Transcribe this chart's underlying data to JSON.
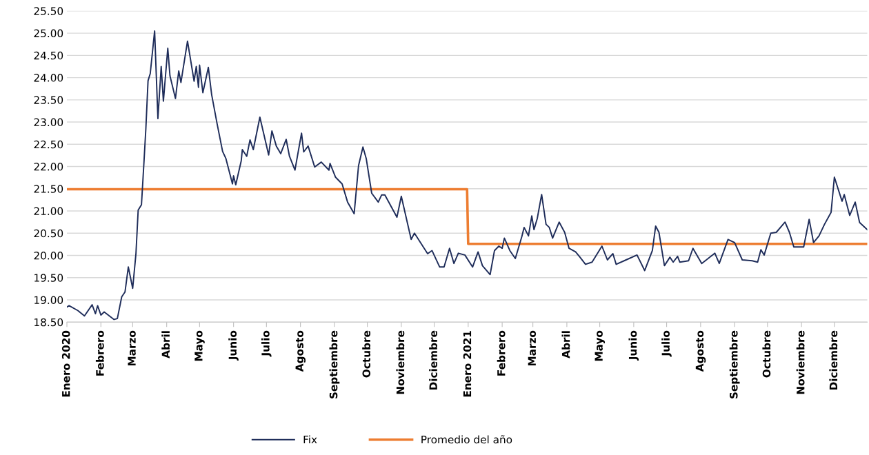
{
  "chart_data": {
    "type": "line",
    "legend": "bottom",
    "grid": "y",
    "ylim": [
      18.5,
      25.5
    ],
    "yticks": [
      {
        "value": 18.5,
        "label": "18.50"
      },
      {
        "value": 19,
        "label": "19.00"
      },
      {
        "value": 19.5,
        "label": "19.50"
      },
      {
        "value": 20,
        "label": "20.00"
      },
      {
        "value": 20.5,
        "label": "20.50"
      },
      {
        "value": 21,
        "label": "21.00"
      },
      {
        "value": 21.5,
        "label": "21.50"
      },
      {
        "value": 22,
        "label": "22.00"
      },
      {
        "value": 22.5,
        "label": "22.50"
      },
      {
        "value": 23,
        "label": "23.00"
      },
      {
        "value": 23.5,
        "label": "23.50"
      },
      {
        "value": 24,
        "label": "24.00"
      },
      {
        "value": 24.5,
        "label": "24.50"
      },
      {
        "value": 25,
        "label": "25.00"
      },
      {
        "value": 25.5,
        "label": "25.50"
      }
    ],
    "xlim": [
      "2020-01-01",
      "2021-12-31"
    ],
    "xticks": [
      {
        "value": "2020-01-01",
        "label": "Enero 2020"
      },
      {
        "value": "2020-02-01",
        "label": "Febrero"
      },
      {
        "value": "2020-03-01",
        "label": "Marzo"
      },
      {
        "value": "2020-04-01",
        "label": "Abril"
      },
      {
        "value": "2020-05-01",
        "label": "Mayo"
      },
      {
        "value": "2020-06-01",
        "label": "Junio"
      },
      {
        "value": "2020-07-01",
        "label": "Julio"
      },
      {
        "value": "2020-08-01",
        "label": "Agosto"
      },
      {
        "value": "2020-09-01",
        "label": "Septiembre"
      },
      {
        "value": "2020-10-01",
        "label": "Octubre"
      },
      {
        "value": "2020-11-01",
        "label": "Noviembre"
      },
      {
        "value": "2020-12-01",
        "label": "Diciembre"
      },
      {
        "value": "2021-01-01",
        "label": "Enero 2021"
      },
      {
        "value": "2021-02-01",
        "label": "Febrero"
      },
      {
        "value": "2021-03-01",
        "label": "Marzo"
      },
      {
        "value": "2021-04-01",
        "label": "Abril"
      },
      {
        "value": "2021-05-01",
        "label": "Mayo"
      },
      {
        "value": "2021-06-01",
        "label": "Junio"
      },
      {
        "value": "2021-07-01",
        "label": "Julio"
      },
      {
        "value": "2021-08-01",
        "label": "Agosto"
      },
      {
        "value": "2021-09-01",
        "label": "Septiembre"
      },
      {
        "value": "2021-10-01",
        "label": "Octubre"
      },
      {
        "value": "2021-11-01",
        "label": "Noviembre"
      },
      {
        "value": "2021-12-01",
        "label": "Diciembre"
      }
    ],
    "series": [
      {
        "name": "Fix",
        "color": "#1f2d5a",
        "x": [
          "2020-01-01",
          "2020-01-03",
          "2020-01-11",
          "2020-01-17",
          "2020-01-24",
          "2020-01-27",
          "2020-01-29",
          "2020-02-01",
          "2020-02-04",
          "2020-02-13",
          "2020-02-16",
          "2020-02-20",
          "2020-02-23",
          "2020-02-26",
          "2020-03-01",
          "2020-03-04",
          "2020-03-06",
          "2020-03-09",
          "2020-03-11",
          "2020-03-13",
          "2020-03-15",
          "2020-03-17",
          "2020-03-21",
          "2020-03-24",
          "2020-03-27",
          "2020-03-29",
          "2020-04-02",
          "2020-04-04",
          "2020-04-09",
          "2020-04-12",
          "2020-04-14",
          "2020-04-20",
          "2020-04-26",
          "2020-04-28",
          "2020-04-30",
          "2020-05-01",
          "2020-05-04",
          "2020-05-09",
          "2020-05-12",
          "2020-05-17",
          "2020-05-22",
          "2020-05-25",
          "2020-05-31",
          "2020-06-01",
          "2020-06-03",
          "2020-06-08",
          "2020-06-09",
          "2020-06-13",
          "2020-06-16",
          "2020-06-19",
          "2020-06-25",
          "2020-07-03",
          "2020-07-06",
          "2020-07-10",
          "2020-07-14",
          "2020-07-19",
          "2020-07-22",
          "2020-07-27",
          "2020-08-02",
          "2020-08-04",
          "2020-08-08",
          "2020-08-14",
          "2020-08-20",
          "2020-08-27",
          "2020-08-28",
          "2020-09-02",
          "2020-09-08",
          "2020-09-13",
          "2020-09-19",
          "2020-09-23",
          "2020-09-27",
          "2020-09-30",
          "2020-10-05",
          "2020-10-11",
          "2020-10-14",
          "2020-10-17",
          "2020-10-28",
          "2020-11-01",
          "2020-11-10",
          "2020-11-13",
          "2020-11-25",
          "2020-11-29",
          "2020-12-06",
          "2020-12-10",
          "2020-12-15",
          "2020-12-19",
          "2020-12-23",
          "2020-12-29",
          "2021-01-05",
          "2021-01-10",
          "2021-01-14",
          "2021-01-21",
          "2021-01-25",
          "2021-01-29",
          "2021-02-01",
          "2021-02-03",
          "2021-02-08",
          "2021-02-13",
          "2021-02-19",
          "2021-02-21",
          "2021-02-25",
          "2021-02-28",
          "2021-03-02",
          "2021-03-05",
          "2021-03-09",
          "2021-03-13",
          "2021-03-16",
          "2021-03-19",
          "2021-03-25",
          "2021-03-30",
          "2021-04-03",
          "2021-04-09",
          "2021-04-13",
          "2021-04-18",
          "2021-04-24",
          "2021-05-03",
          "2021-05-08",
          "2021-05-13",
          "2021-05-16",
          "2021-05-25",
          "2021-06-04",
          "2021-06-11",
          "2021-06-18",
          "2021-06-21",
          "2021-06-24",
          "2021-06-29",
          "2021-07-04",
          "2021-07-07",
          "2021-07-11",
          "2021-07-13",
          "2021-07-21",
          "2021-07-25",
          "2021-08-02",
          "2021-08-14",
          "2021-08-18",
          "2021-08-26",
          "2021-09-01",
          "2021-09-08",
          "2021-09-17",
          "2021-09-22",
          "2021-09-25",
          "2021-09-28",
          "2021-10-04",
          "2021-10-09",
          "2021-10-17",
          "2021-10-21",
          "2021-10-25",
          "2021-11-03",
          "2021-11-08",
          "2021-11-12",
          "2021-11-17",
          "2021-11-22",
          "2021-11-28",
          "2021-12-01",
          "2021-12-08",
          "2021-12-10",
          "2021-12-15",
          "2021-12-20",
          "2021-12-24",
          "2021-12-31"
        ],
        "values": [
          18.84,
          18.87,
          18.76,
          18.64,
          18.89,
          18.69,
          18.87,
          18.66,
          18.73,
          18.56,
          18.58,
          19.07,
          19.18,
          19.74,
          19.26,
          20.05,
          21.02,
          21.14,
          21.98,
          22.85,
          23.93,
          24.09,
          25.05,
          23.08,
          24.25,
          23.47,
          24.66,
          24.04,
          23.53,
          24.15,
          23.89,
          24.82,
          23.92,
          24.25,
          23.78,
          24.28,
          23.66,
          24.23,
          23.62,
          22.96,
          22.34,
          22.18,
          21.61,
          21.79,
          21.59,
          22.13,
          22.38,
          22.23,
          22.6,
          22.38,
          23.11,
          22.26,
          22.8,
          22.46,
          22.29,
          22.61,
          22.23,
          21.92,
          22.75,
          22.33,
          22.46,
          21.99,
          22.1,
          21.92,
          22.07,
          21.76,
          21.61,
          21.2,
          20.94,
          22.02,
          22.44,
          22.18,
          21.4,
          21.2,
          21.36,
          21.36,
          20.86,
          21.33,
          20.36,
          20.5,
          20.04,
          20.11,
          19.74,
          19.74,
          20.16,
          19.82,
          20.05,
          20.01,
          19.74,
          20.08,
          19.77,
          19.57,
          20.11,
          20.21,
          20.16,
          20.39,
          20.11,
          19.93,
          20.43,
          20.63,
          20.44,
          20.89,
          20.58,
          20.83,
          21.37,
          20.7,
          20.63,
          20.39,
          20.75,
          20.52,
          20.16,
          20.08,
          19.96,
          19.8,
          19.85,
          20.21,
          19.9,
          20.04,
          19.8,
          19.9,
          20.01,
          19.66,
          20.11,
          20.66,
          20.52,
          19.77,
          19.96,
          19.85,
          19.98,
          19.85,
          19.88,
          20.16,
          19.82,
          20.05,
          19.82,
          20.36,
          20.29,
          19.9,
          19.88,
          19.85,
          20.13,
          20.01,
          20.5,
          20.52,
          20.75,
          20.52,
          20.19,
          20.19,
          20.81,
          20.29,
          20.44,
          20.7,
          20.97,
          21.76,
          21.22,
          21.37,
          20.9,
          21.2,
          20.74,
          20.58
        ]
      },
      {
        "name": "Promedio del año",
        "color": "#ed7d31",
        "x": [
          "2020-01-01",
          "2020-12-31",
          "2021-01-01",
          "2021-12-31"
        ],
        "values": [
          21.49,
          21.49,
          20.26,
          20.26
        ]
      }
    ]
  }
}
